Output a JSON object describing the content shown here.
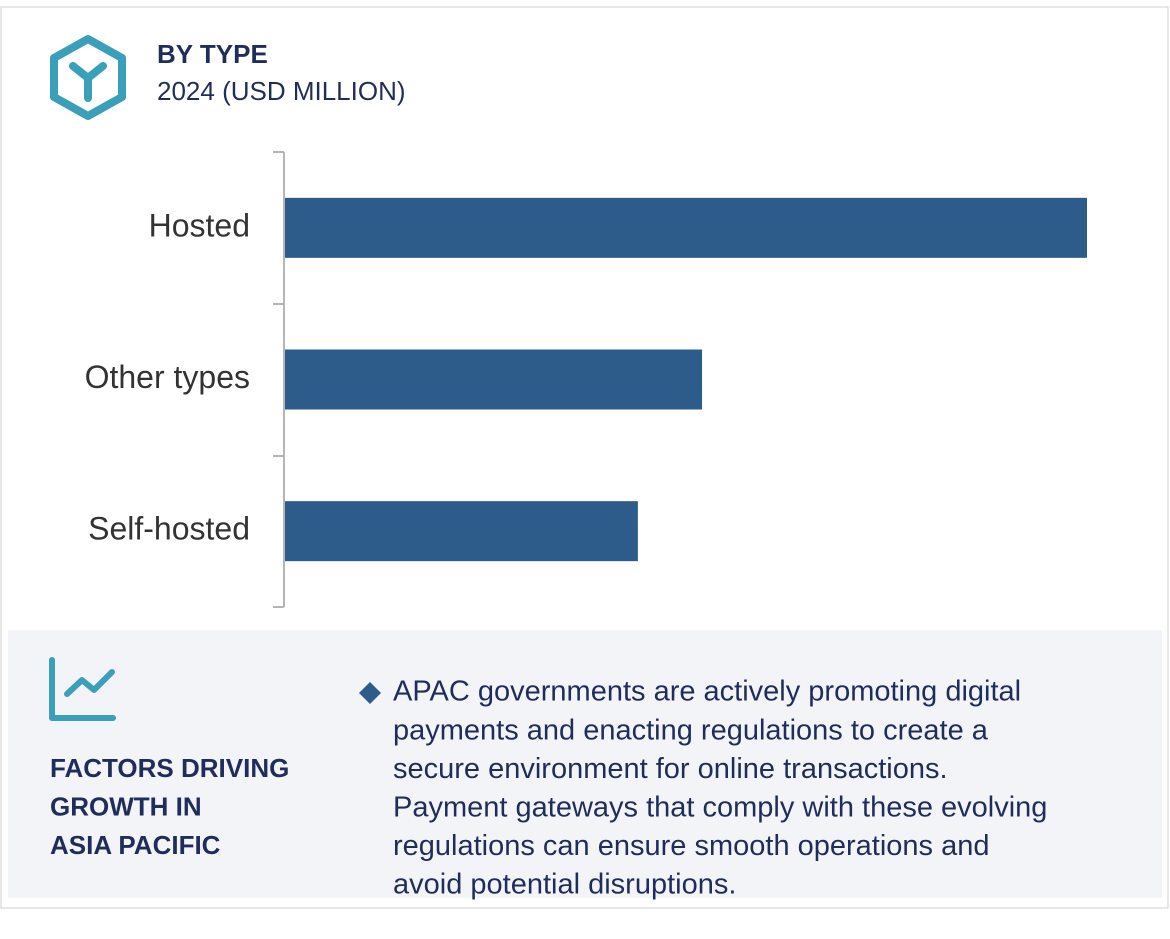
{
  "chart_data": {
    "type": "bar",
    "orientation": "horizontal",
    "title": "BY TYPE",
    "subtitle": "2024 (USD MILLION)",
    "categories": [
      "Hosted",
      "Other types",
      "Self-hosted"
    ],
    "values": [
      100,
      52,
      44
    ],
    "color": "#2d5c8a",
    "xlim": [
      0,
      100
    ]
  },
  "panel": {
    "heading": [
      "FACTORS DRIVING",
      "GROWTH IN",
      "ASIA PACIFIC"
    ],
    "text": [
      "APAC governments are actively promoting digital",
      "payments and enacting regulations to create a",
      "secure environment for online transactions.",
      "Payment gateways that comply with these evolving",
      "regulations can ensure smooth operations and",
      "avoid potential disruptions."
    ]
  }
}
